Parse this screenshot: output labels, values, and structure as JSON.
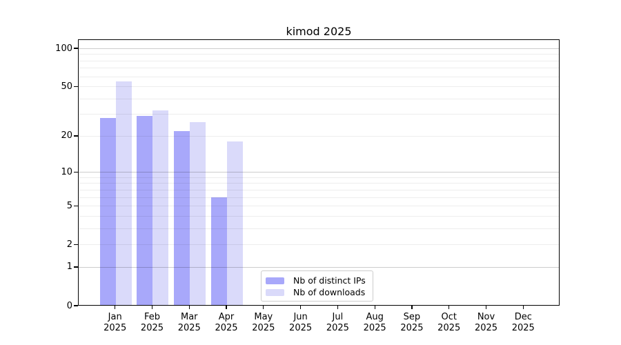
{
  "chart_data": {
    "type": "bar",
    "title": "kimod 2025",
    "scale": "log1p",
    "ylim": [
      0,
      100
    ],
    "grid": true,
    "legend_position": "bottom-center-inside",
    "categories": [
      "Jan",
      "Feb",
      "Mar",
      "Apr",
      "May",
      "Jun",
      "Jul",
      "Aug",
      "Sep",
      "Oct",
      "Nov",
      "Dec"
    ],
    "category_year": "2025",
    "yticks": [
      0,
      1,
      2,
      5,
      10,
      20,
      50,
      100
    ],
    "major_gridlines": [
      1,
      10,
      100
    ],
    "minor_gridlines": [
      2,
      3,
      4,
      5,
      6,
      7,
      8,
      9,
      20,
      30,
      40,
      50,
      60,
      70,
      80,
      90
    ],
    "series": [
      {
        "name": "Nb of distinct IPs",
        "color": "#a8a8fa",
        "values": [
          28,
          29,
          22,
          6,
          0,
          0,
          0,
          0,
          0,
          0,
          0,
          0
        ]
      },
      {
        "name": "Nb of downloads",
        "color": "#dadafa",
        "values": [
          55,
          32,
          26,
          18,
          0,
          0,
          0,
          0,
          0,
          0,
          0,
          0
        ]
      }
    ]
  },
  "legend": {
    "items": [
      {
        "label": "Nb of distinct IPs",
        "color": "#a8a8fa"
      },
      {
        "label": "Nb of downloads",
        "color": "#dadafa"
      }
    ]
  }
}
